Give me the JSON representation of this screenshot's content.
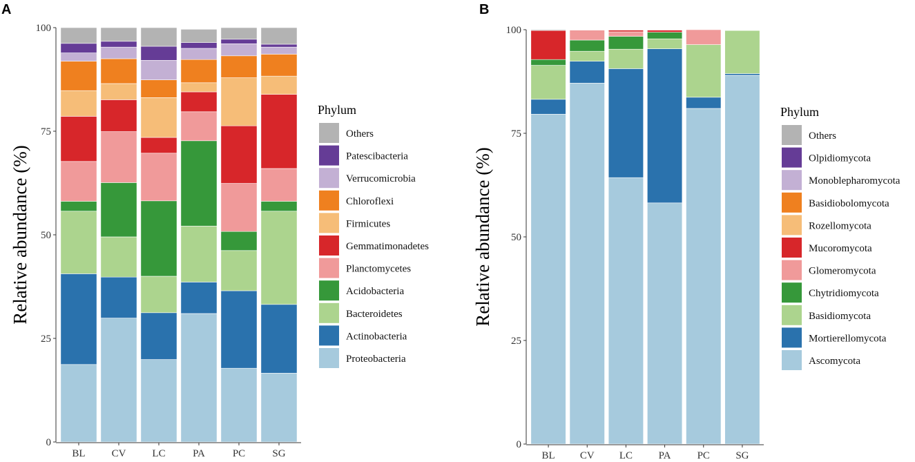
{
  "chart_data": [
    {
      "panel": "A",
      "type": "bar",
      "stacked": true,
      "title": "",
      "xlabel": "",
      "ylabel": "Relative abundance (%)",
      "ylim": [
        0,
        100
      ],
      "yticks": [
        "0",
        "25",
        "50",
        "75",
        "100"
      ],
      "categories": [
        "BL",
        "CV",
        "LC",
        "PA",
        "PC",
        "SG"
      ],
      "legend_title": "Phylum",
      "series": [
        {
          "name": "Proteobacteria",
          "color": "#a6cadd",
          "values": [
            18.7,
            29.9,
            19.9,
            31.0,
            17.8,
            16.6
          ]
        },
        {
          "name": "Actinobacteria",
          "color": "#2a72ad",
          "values": [
            21.9,
            9.9,
            11.3,
            7.6,
            18.7,
            16.6
          ]
        },
        {
          "name": "Bacteroidetes",
          "color": "#acd48e",
          "values": [
            15.1,
            9.7,
            8.8,
            13.5,
            9.7,
            22.5
          ]
        },
        {
          "name": "Acidobacteria",
          "color": "#36983a",
          "values": [
            2.4,
            13.1,
            18.2,
            20.6,
            4.6,
            2.4
          ]
        },
        {
          "name": "Planctomycetes",
          "color": "#f09a9a",
          "values": [
            9.6,
            12.3,
            11.5,
            7.0,
            11.6,
            7.9
          ]
        },
        {
          "name": "Gemmatimonadetes",
          "color": "#d7262a",
          "values": [
            10.9,
            7.7,
            3.8,
            4.8,
            13.9,
            17.9
          ]
        },
        {
          "name": "Firmicutes",
          "color": "#f6bd78",
          "values": [
            6.2,
            3.9,
            9.6,
            2.2,
            11.6,
            4.4
          ]
        },
        {
          "name": "Chloroflexi",
          "color": "#ef801f",
          "values": [
            7.1,
            6.0,
            4.3,
            5.6,
            5.3,
            5.3
          ]
        },
        {
          "name": "Verrucomicrobia",
          "color": "#c3b0d4",
          "values": [
            2.0,
            2.8,
            4.7,
            2.7,
            2.9,
            1.7
          ]
        },
        {
          "name": "Patescibacteria",
          "color": "#653c96",
          "values": [
            2.3,
            1.4,
            3.4,
            1.4,
            1.1,
            0.7
          ]
        },
        {
          "name": "Others",
          "color": "#b3b3b3",
          "values": [
            3.8,
            3.3,
            4.5,
            3.2,
            2.8,
            4.0
          ]
        }
      ]
    },
    {
      "panel": "B",
      "type": "bar",
      "stacked": true,
      "title": "",
      "xlabel": "",
      "ylabel": "Relative abundance (%)",
      "ylim": [
        0,
        100
      ],
      "yticks": [
        "0",
        "25",
        "50",
        "75",
        "100"
      ],
      "categories": [
        "BL",
        "CV",
        "LC",
        "PA",
        "PC",
        "SG"
      ],
      "legend_title": "Phylum",
      "series": [
        {
          "name": "Ascomycota",
          "color": "#a6cadd",
          "values": [
            79.6,
            87.1,
            64.3,
            58.2,
            81.0,
            89.0
          ]
        },
        {
          "name": "Mortierellomycota",
          "color": "#2a72ad",
          "values": [
            3.6,
            5.3,
            26.3,
            37.2,
            2.7,
            0.4
          ]
        },
        {
          "name": "Basidiomycota",
          "color": "#acd48e",
          "values": [
            8.2,
            2.4,
            4.7,
            2.4,
            12.7,
            10.4
          ]
        },
        {
          "name": "Chytridiomycota",
          "color": "#36983a",
          "values": [
            1.4,
            2.7,
            3.1,
            1.6,
            0.0,
            0.1
          ]
        },
        {
          "name": "Glomeromycota",
          "color": "#f09a9a",
          "values": [
            0.0,
            2.4,
            1.1,
            0.0,
            3.6,
            0.0
          ]
        },
        {
          "name": "Mucoromycota",
          "color": "#d7262a",
          "values": [
            7.0,
            0.0,
            0.4,
            0.5,
            0.0,
            0.0
          ]
        },
        {
          "name": "Rozellomycota",
          "color": "#f6bd78",
          "values": [
            0.0,
            0.0,
            0.0,
            0.0,
            0.0,
            0.0
          ]
        },
        {
          "name": "Basidiobolomycota",
          "color": "#ef801f",
          "values": [
            0.0,
            0.0,
            0.0,
            0.0,
            0.0,
            0.0
          ]
        },
        {
          "name": "Monoblepharomycota",
          "color": "#c3b0d4",
          "values": [
            0.0,
            0.0,
            0.0,
            0.0,
            0.0,
            0.0
          ]
        },
        {
          "name": "Olpidiomycota",
          "color": "#653c96",
          "values": [
            0.0,
            0.0,
            0.0,
            0.0,
            0.0,
            0.0
          ]
        },
        {
          "name": "Others",
          "color": "#b3b3b3",
          "values": [
            0.2,
            0.1,
            0.1,
            0.1,
            0.0,
            0.1
          ]
        }
      ]
    }
  ]
}
